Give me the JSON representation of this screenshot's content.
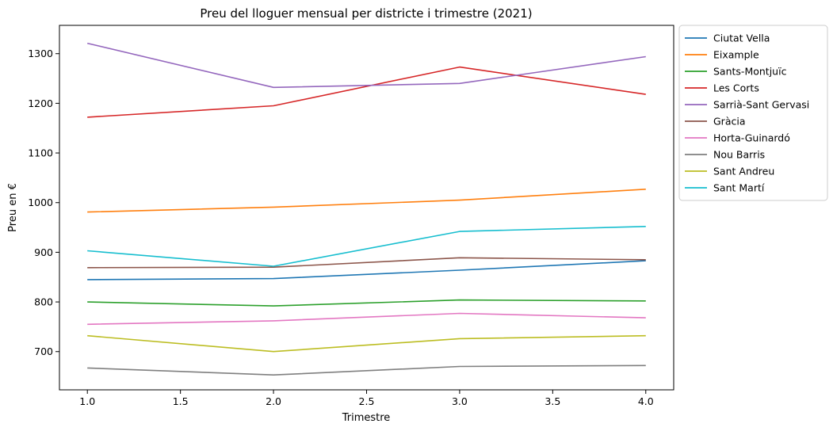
{
  "chart_data": {
    "type": "line",
    "title": "Preu del lloguer mensual per districte i trimestre (2021)",
    "xlabel": "Trimestre",
    "ylabel": "Preu en €",
    "x": [
      1.0,
      2.0,
      3.0,
      4.0
    ],
    "xlim": [
      0.85,
      4.15
    ],
    "ylim": [
      623,
      1357
    ],
    "xticks": [
      1.0,
      1.5,
      2.0,
      2.5,
      3.0,
      3.5,
      4.0
    ],
    "xtick_labels": [
      "1.0",
      "1.5",
      "2.0",
      "2.5",
      "3.0",
      "3.5",
      "4.0"
    ],
    "yticks": [
      700,
      800,
      900,
      1000,
      1100,
      1200,
      1300
    ],
    "ytick_labels": [
      "700",
      "800",
      "900",
      "1000",
      "1100",
      "1200",
      "1300"
    ],
    "grid": false,
    "legend_position": "outside-right-top",
    "series": [
      {
        "name": "Ciutat Vella",
        "color": "#1f77b4",
        "values": [
          845,
          847,
          864,
          883
        ]
      },
      {
        "name": "Eixample",
        "color": "#ff7f0e",
        "values": [
          981,
          991,
          1005,
          1027
        ]
      },
      {
        "name": "Sants-Montjuïc",
        "color": "#2ca02c",
        "values": [
          800,
          792,
          804,
          802
        ]
      },
      {
        "name": "Les Corts",
        "color": "#d62728",
        "values": [
          1172,
          1195,
          1273,
          1218
        ]
      },
      {
        "name": "Sarrià-Sant Gervasi",
        "color": "#9467bd",
        "values": [
          1321,
          1232,
          1240,
          1294
        ]
      },
      {
        "name": "Gràcia",
        "color": "#8c564b",
        "values": [
          869,
          870,
          889,
          885
        ]
      },
      {
        "name": "Horta-Guinardó",
        "color": "#e377c2",
        "values": [
          755,
          762,
          777,
          768
        ]
      },
      {
        "name": "Nou Barris",
        "color": "#7f7f7f",
        "values": [
          667,
          653,
          670,
          672
        ]
      },
      {
        "name": "Sant Andreu",
        "color": "#bcbd22",
        "values": [
          732,
          700,
          726,
          732
        ]
      },
      {
        "name": "Sant Martí",
        "color": "#17becf",
        "values": [
          903,
          872,
          942,
          952
        ]
      }
    ]
  }
}
